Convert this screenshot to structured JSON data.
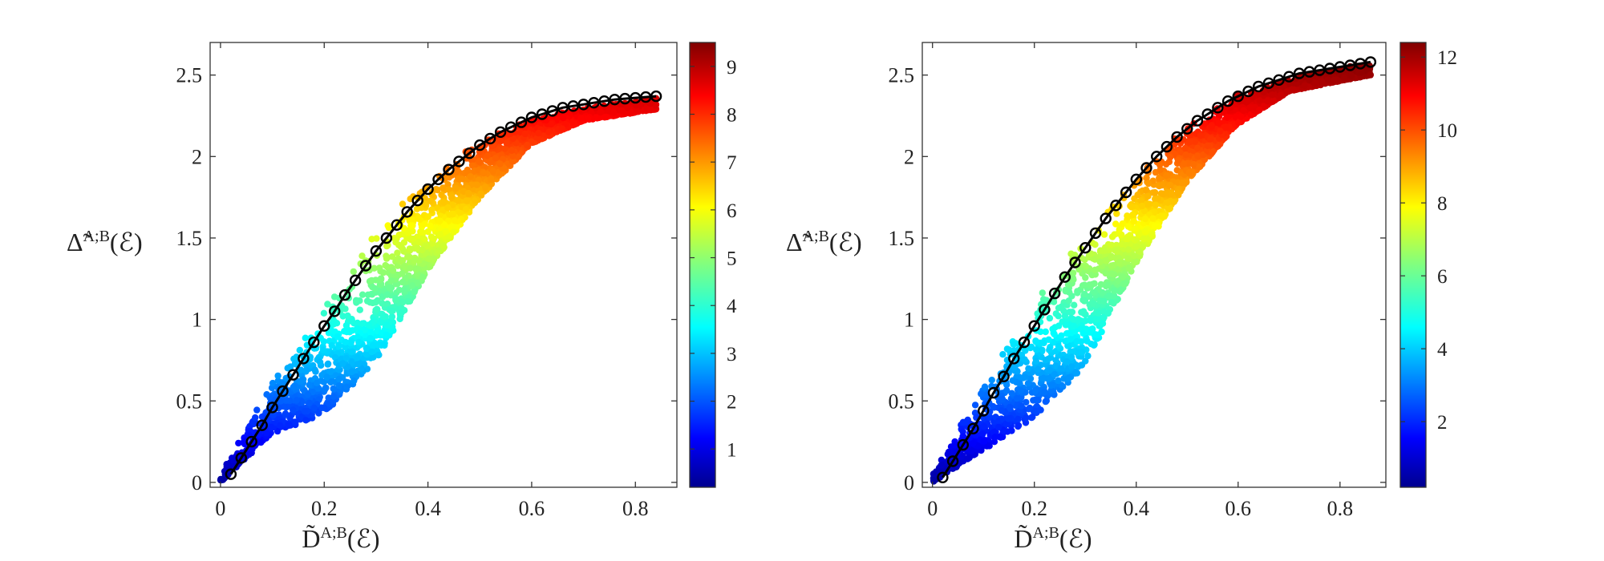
{
  "chart_data": [
    {
      "type": "scatter",
      "id": "left",
      "xlabel_main": "D̃",
      "xlabel_sup": "A;B",
      "xlabel_arg": "(ℰ)",
      "ylabel_main": "Δ̃",
      "ylabel_sup": "A;B",
      "ylabel_arg": "(ℰ)",
      "xlim": [
        -0.02,
        0.88
      ],
      "ylim": [
        -0.03,
        2.7
      ],
      "xticks": [
        0,
        0.2,
        0.4,
        0.6,
        0.8
      ],
      "xtick_labels": [
        "0",
        "0.2",
        "0.4",
        "0.6",
        "0.8"
      ],
      "yticks": [
        0,
        0.5,
        1,
        1.5,
        2,
        2.5
      ],
      "ytick_labels": [
        "0",
        "0.5",
        "1",
        "1.5",
        "2",
        "2.5"
      ],
      "colorbar": {
        "colormap": "jet",
        "range": [
          0.2,
          9.5
        ],
        "ticks": [
          1,
          2,
          3,
          4,
          5,
          6,
          7,
          8,
          9
        ],
        "tick_labels": [
          "1",
          "2",
          "3",
          "4",
          "5",
          "6",
          "7",
          "8",
          "9"
        ]
      },
      "scatter_band": {
        "description_color": "color encodes the colorbar quantity, increasing along the curve",
        "x_range": [
          0,
          0.84
        ],
        "upper_envelope": [
          [
            0,
            0.05
          ],
          [
            0.1,
            0.65
          ],
          [
            0.2,
            1.12
          ],
          [
            0.3,
            1.55
          ],
          [
            0.4,
            1.88
          ],
          [
            0.5,
            2.1
          ],
          [
            0.6,
            2.23
          ],
          [
            0.7,
            2.3
          ],
          [
            0.84,
            2.36
          ]
        ],
        "lower_envelope": [
          [
            0,
            0
          ],
          [
            0.1,
            0.3
          ],
          [
            0.2,
            0.42
          ],
          [
            0.3,
            0.75
          ],
          [
            0.4,
            1.3
          ],
          [
            0.5,
            1.75
          ],
          [
            0.6,
            2.08
          ],
          [
            0.7,
            2.22
          ],
          [
            0.84,
            2.29
          ]
        ],
        "point_color": "#0000ff"
      },
      "series": [
        {
          "type": "line-marker",
          "marker": "circle-open",
          "color": "#000000",
          "x": [
            0.02,
            0.04,
            0.06,
            0.08,
            0.1,
            0.12,
            0.14,
            0.16,
            0.18,
            0.2,
            0.22,
            0.24,
            0.26,
            0.28,
            0.3,
            0.32,
            0.34,
            0.36,
            0.38,
            0.4,
            0.42,
            0.44,
            0.46,
            0.48,
            0.5,
            0.52,
            0.54,
            0.56,
            0.58,
            0.6,
            0.62,
            0.64,
            0.66,
            0.68,
            0.7,
            0.72,
            0.74,
            0.76,
            0.78,
            0.8,
            0.82,
            0.84
          ],
          "y": [
            0.05,
            0.15,
            0.25,
            0.35,
            0.46,
            0.56,
            0.66,
            0.76,
            0.86,
            0.96,
            1.05,
            1.15,
            1.24,
            1.33,
            1.42,
            1.5,
            1.58,
            1.66,
            1.73,
            1.8,
            1.86,
            1.92,
            1.97,
            2.02,
            2.07,
            2.11,
            2.15,
            2.18,
            2.21,
            2.24,
            2.26,
            2.28,
            2.3,
            2.31,
            2.32,
            2.33,
            2.34,
            2.35,
            2.355,
            2.36,
            2.365,
            2.37
          ]
        }
      ]
    },
    {
      "type": "scatter",
      "id": "right",
      "xlabel_main": "D̃",
      "xlabel_sup": "A;B",
      "xlabel_arg": "(ℰ)",
      "ylabel_main": "Δ̃",
      "ylabel_sup": "A;B",
      "ylabel_arg": "(ℰ)",
      "xlim": [
        -0.02,
        0.89
      ],
      "ylim": [
        -0.03,
        2.7
      ],
      "xticks": [
        0,
        0.2,
        0.4,
        0.6,
        0.8
      ],
      "xtick_labels": [
        "0",
        "0.2",
        "0.4",
        "0.6",
        "0.8"
      ],
      "yticks": [
        0,
        0.5,
        1,
        1.5,
        2,
        2.5
      ],
      "ytick_labels": [
        "0",
        "0.5",
        "1",
        "1.5",
        "2",
        "2.5"
      ],
      "colorbar": {
        "colormap": "jet",
        "range": [
          0.2,
          12.4
        ],
        "ticks": [
          2,
          4,
          6,
          8,
          10,
          12
        ],
        "tick_labels": [
          "2",
          "4",
          "6",
          "8",
          "10",
          "12"
        ]
      },
      "scatter_band": {
        "x_range": [
          0,
          0.86
        ],
        "upper_envelope": [
          [
            0,
            0.05
          ],
          [
            0.1,
            0.62
          ],
          [
            0.2,
            1.12
          ],
          [
            0.3,
            1.55
          ],
          [
            0.4,
            1.92
          ],
          [
            0.5,
            2.2
          ],
          [
            0.6,
            2.38
          ],
          [
            0.7,
            2.48
          ],
          [
            0.86,
            2.58
          ]
        ],
        "lower_envelope": [
          [
            0,
            0
          ],
          [
            0.1,
            0.2
          ],
          [
            0.2,
            0.4
          ],
          [
            0.3,
            0.72
          ],
          [
            0.4,
            1.35
          ],
          [
            0.5,
            1.85
          ],
          [
            0.6,
            2.2
          ],
          [
            0.7,
            2.4
          ],
          [
            0.86,
            2.5
          ]
        ],
        "point_color": "#0000ff"
      },
      "series": [
        {
          "type": "line-marker",
          "marker": "circle-open",
          "color": "#000000",
          "x": [
            0.02,
            0.04,
            0.06,
            0.08,
            0.1,
            0.12,
            0.14,
            0.16,
            0.18,
            0.2,
            0.22,
            0.24,
            0.26,
            0.28,
            0.3,
            0.32,
            0.34,
            0.36,
            0.38,
            0.4,
            0.42,
            0.44,
            0.46,
            0.48,
            0.5,
            0.52,
            0.54,
            0.56,
            0.58,
            0.6,
            0.62,
            0.64,
            0.66,
            0.68,
            0.7,
            0.72,
            0.74,
            0.76,
            0.78,
            0.8,
            0.82,
            0.84,
            0.86
          ],
          "y": [
            0.03,
            0.13,
            0.23,
            0.33,
            0.44,
            0.55,
            0.65,
            0.76,
            0.86,
            0.96,
            1.06,
            1.16,
            1.26,
            1.35,
            1.44,
            1.53,
            1.62,
            1.7,
            1.78,
            1.86,
            1.93,
            2.0,
            2.06,
            2.12,
            2.17,
            2.22,
            2.26,
            2.3,
            2.34,
            2.37,
            2.4,
            2.43,
            2.45,
            2.47,
            2.49,
            2.51,
            2.52,
            2.53,
            2.54,
            2.55,
            2.56,
            2.57,
            2.58
          ]
        }
      ]
    }
  ]
}
